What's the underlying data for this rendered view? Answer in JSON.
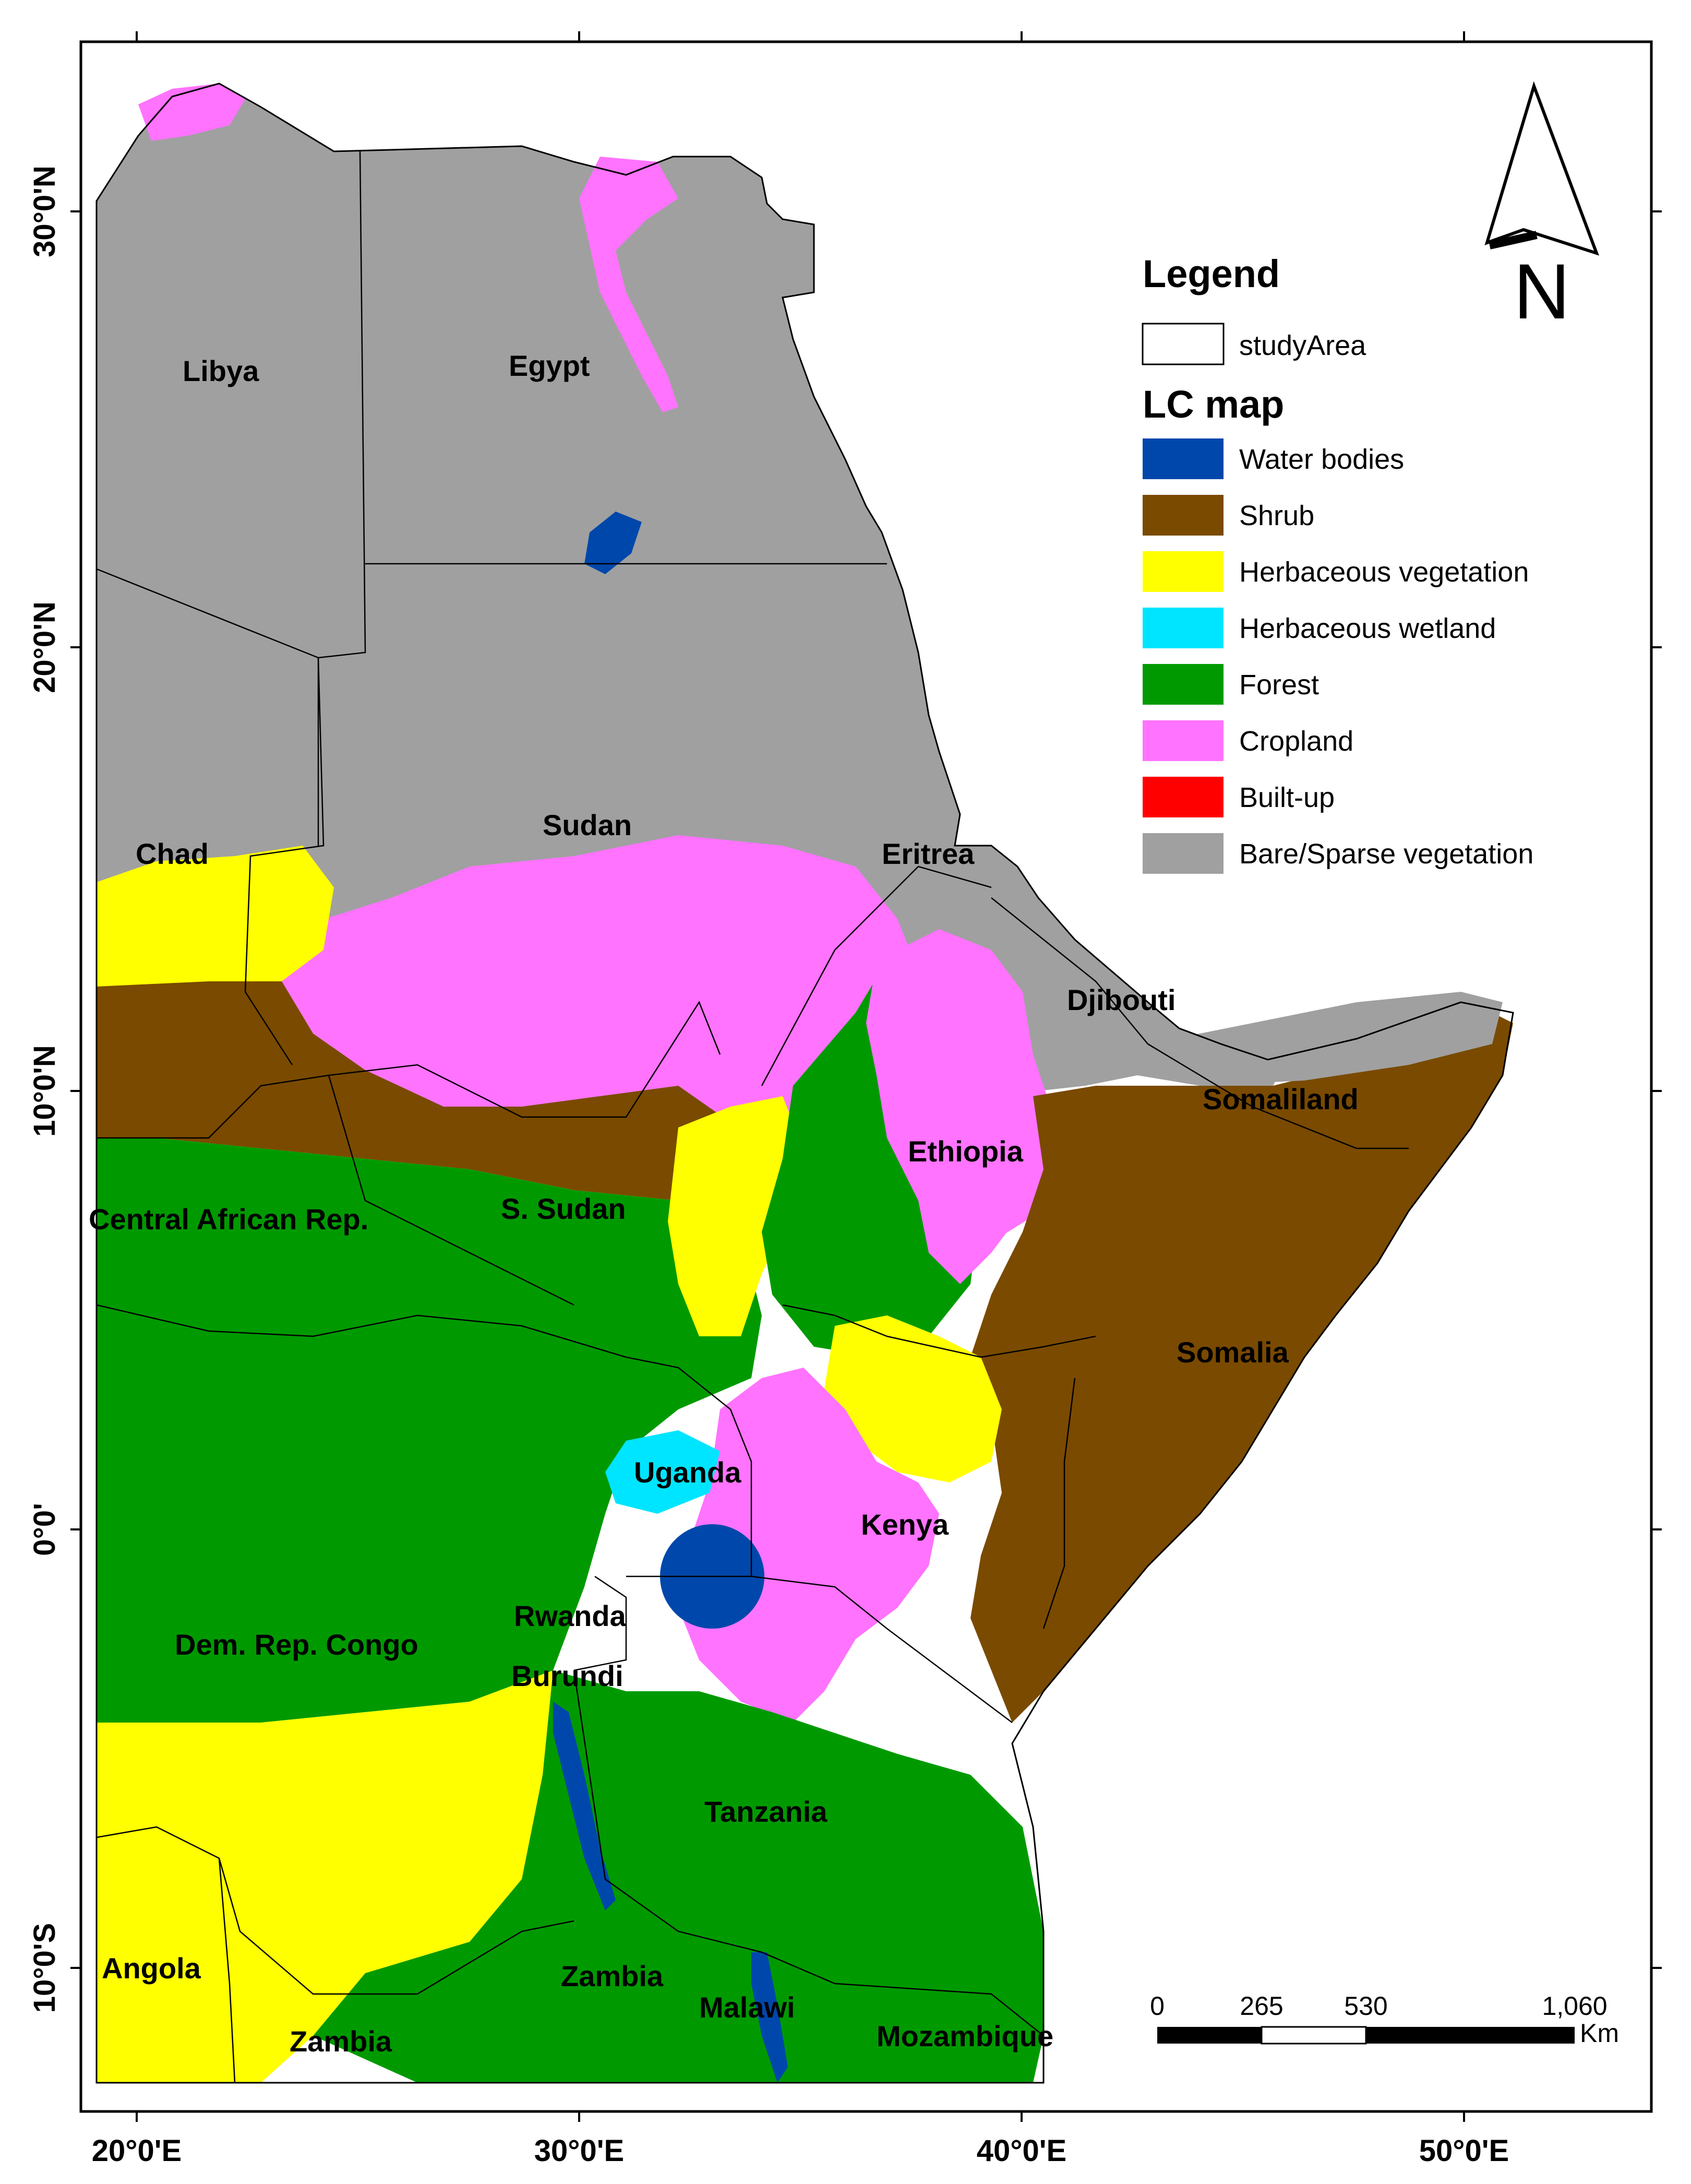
{
  "colors": {
    "water": "#0047ab",
    "shrub": "#7a4a00",
    "herbaceous_vegetation": "#ffff00",
    "herbaceous_wetland": "#00e5ff",
    "forest": "#009a00",
    "cropland": "#ff73ff",
    "builtup": "#ff0000",
    "bare": "#a0a0a0"
  },
  "axes": {
    "x_ticks": [
      "20°0'E",
      "30°0'E",
      "40°0'E",
      "50°0'E"
    ],
    "y_ticks": [
      "30°0'N",
      "20°0'N",
      "10°0'N",
      "0°0'",
      "10°0'S"
    ]
  },
  "countries": [
    {
      "name": "Libya"
    },
    {
      "name": "Egypt"
    },
    {
      "name": "Sudan"
    },
    {
      "name": "Chad"
    },
    {
      "name": "Eritrea"
    },
    {
      "name": "Djibouti"
    },
    {
      "name": "Somaliland"
    },
    {
      "name": "Ethiopia"
    },
    {
      "name": "S. Sudan"
    },
    {
      "name": "Central African Rep."
    },
    {
      "name": "Somalia"
    },
    {
      "name": "Uganda"
    },
    {
      "name": "Kenya"
    },
    {
      "name": "Rwanda"
    },
    {
      "name": "Dem. Rep. Congo"
    },
    {
      "name": "Burundi"
    },
    {
      "name": "Tanzania"
    },
    {
      "name": "Angola"
    },
    {
      "name": "Zambia"
    },
    {
      "name": "Malawi"
    },
    {
      "name": "Zambia"
    },
    {
      "name": "Mozambique"
    }
  ],
  "legend": {
    "title": "Legend",
    "study_area_label": "studyArea",
    "lc_title": "LC map",
    "items": [
      {
        "label": "Water bodies",
        "color": "#0047ab"
      },
      {
        "label": "Shrub",
        "color": "#7a4a00"
      },
      {
        "label": "Herbaceous vegetation",
        "color": "#ffff00"
      },
      {
        "label": "Herbaceous wetland",
        "color": "#00e5ff"
      },
      {
        "label": "Forest",
        "color": "#009a00"
      },
      {
        "label": "Cropland",
        "color": "#ff73ff"
      },
      {
        "label": "Built-up",
        "color": "#ff0000"
      },
      {
        "label": "Bare/Sparse vegetation",
        "color": "#a0a0a0"
      }
    ]
  },
  "scale_bar": {
    "labels": [
      "0",
      "265",
      "530",
      "1,060"
    ],
    "unit": "Km"
  },
  "north_arrow": {
    "label": "N"
  }
}
